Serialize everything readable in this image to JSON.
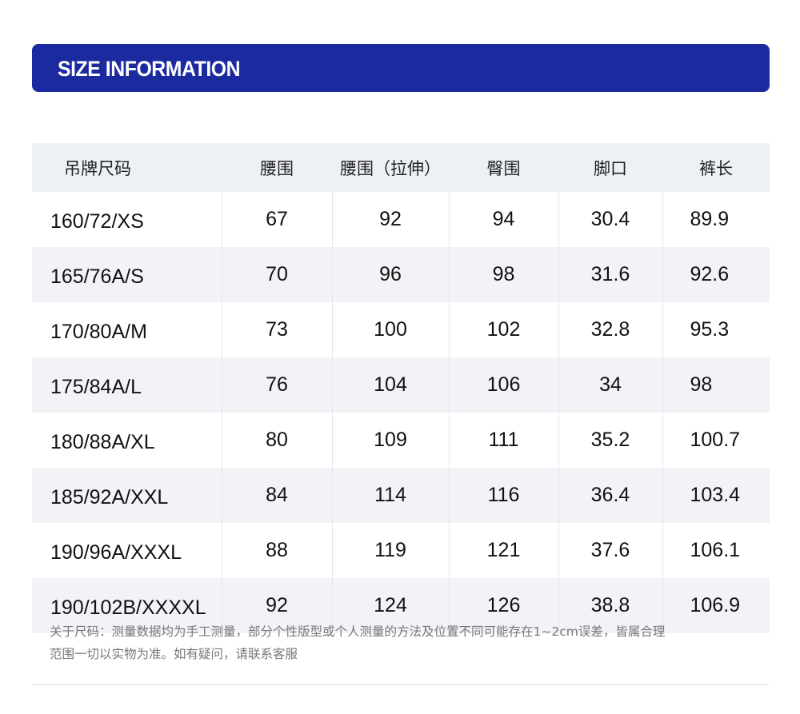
{
  "banner": {
    "title": "SIZE INFORMATION",
    "color": "#1c2aa0"
  },
  "table": {
    "headers": [
      "吊牌尺码",
      "腰围",
      "腰围（拉伸）",
      "臀围",
      "脚口",
      "裤长"
    ],
    "rows": [
      [
        "160/72/XS",
        "67",
        "92",
        "94",
        "30.4",
        "89.9"
      ],
      [
        "165/76A/S",
        "70",
        "96",
        "98",
        "31.6",
        "92.6"
      ],
      [
        "170/80A/M",
        "73",
        "100",
        "102",
        "32.8",
        "95.3"
      ],
      [
        "175/84A/L",
        "76",
        "104",
        "106",
        "34",
        "98"
      ],
      [
        "180/88A/XL",
        "80",
        "109",
        "111",
        "35.2",
        "100.7"
      ],
      [
        "185/92A/XXL",
        "84",
        "114",
        "116",
        "36.4",
        "103.4"
      ],
      [
        "190/96A/XXXL",
        "88",
        "119",
        "121",
        "37.6",
        "106.1"
      ],
      [
        "190/102B/XXXXL",
        "92",
        "124",
        "126",
        "38.8",
        "106.9"
      ]
    ]
  },
  "note": {
    "line1": "关于尺码：测量数据均为手工测量，部分个性版型或个人测量的方法及位置不同可能存在1~2cm误差，皆属合理",
    "line2": "范围一切以实物为准。如有疑问，请联系客服"
  }
}
